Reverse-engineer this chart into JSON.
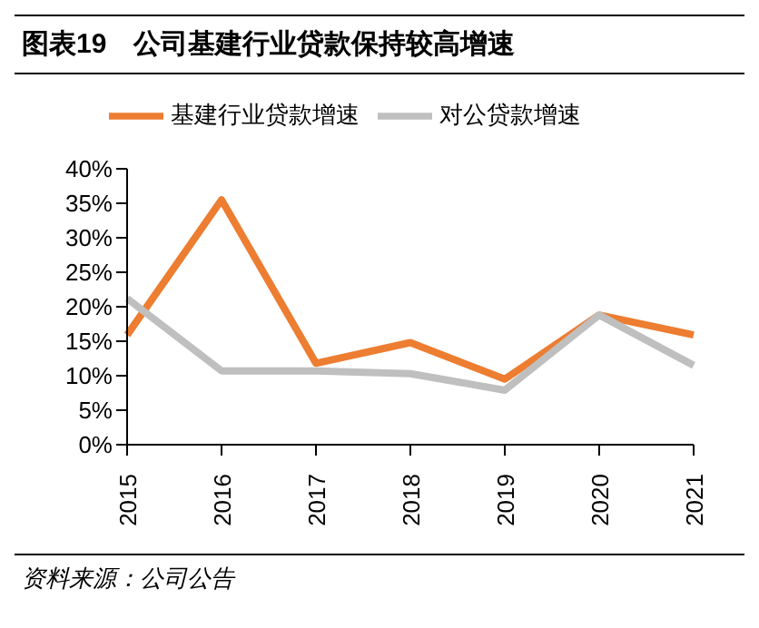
{
  "chart_data": {
    "type": "line",
    "title": "图表19　公司基建行业贷款保持较高增速",
    "categories": [
      "2015",
      "2016",
      "2017",
      "2018",
      "2019",
      "2020",
      "2021"
    ],
    "series": [
      {
        "name": "基建行业贷款增速",
        "color": "#ed7d31",
        "values": [
          15.9,
          35.5,
          11.8,
          14.8,
          9.5,
          18.8,
          15.9
        ]
      },
      {
        "name": "对公贷款增速",
        "color": "#bfbfbf",
        "values": [
          21.2,
          10.7,
          10.7,
          10.3,
          7.9,
          18.8,
          11.5
        ]
      }
    ],
    "ylim": [
      0,
      40
    ],
    "yticks": [
      {
        "value": 0,
        "label": "0%"
      },
      {
        "value": 5,
        "label": "5%"
      },
      {
        "value": 10,
        "label": "10%"
      },
      {
        "value": 15,
        "label": "15%"
      },
      {
        "value": 20,
        "label": "20%"
      },
      {
        "value": 25,
        "label": "25%"
      },
      {
        "value": 30,
        "label": "30%"
      },
      {
        "value": 35,
        "label": "35%"
      },
      {
        "value": 40,
        "label": "40%"
      }
    ],
    "grid": false,
    "legend": "top",
    "marker": "none",
    "line_style": "solid",
    "annotations": [
      "资料来源：公司公告"
    ]
  }
}
